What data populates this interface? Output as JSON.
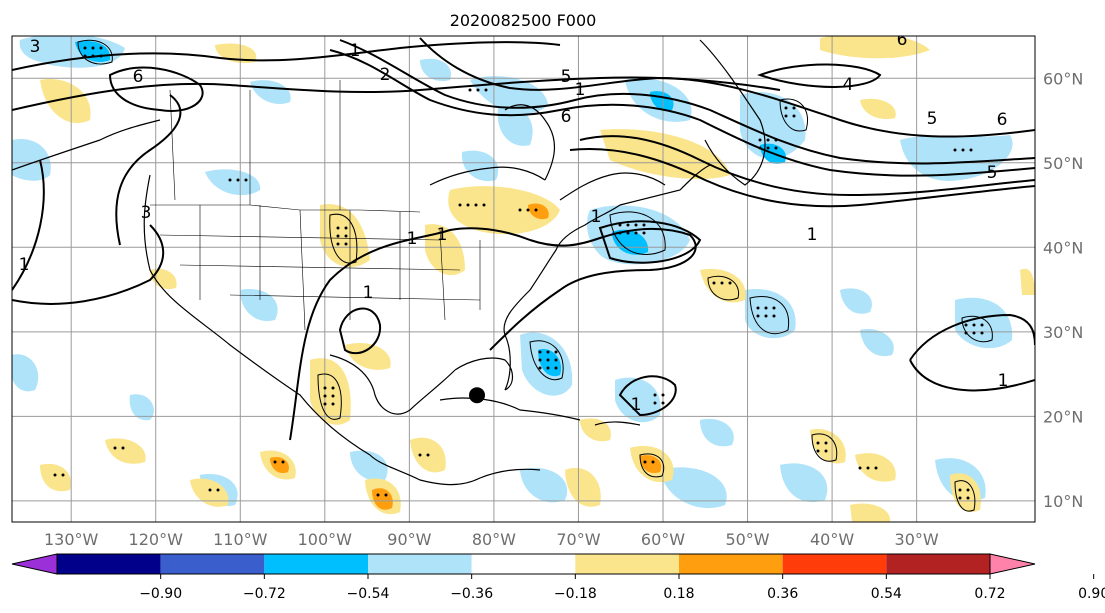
{
  "title": "2020082500 F000",
  "map": {
    "lon_labels": [
      "130°W",
      "120°W",
      "110°W",
      "100°W",
      "90°W",
      "80°W",
      "70°W",
      "60°W",
      "50°W",
      "40°W",
      "30°W"
    ],
    "lat_labels": [
      "60°N",
      "50°N",
      "40°N",
      "30°N",
      "20°N",
      "10°N"
    ],
    "lon_range": [
      -137,
      -16
    ],
    "lat_range": [
      7.5,
      65.0
    ],
    "grid": true,
    "storm_marker": {
      "lon": -82,
      "lat": 22.5
    },
    "contour_labels": [
      "3",
      "1",
      "2",
      "6",
      "5",
      "1",
      "6",
      "4",
      "5",
      "6",
      "6",
      "5",
      "3",
      "1",
      "1",
      "1",
      "1",
      "1",
      "1",
      "1",
      "1"
    ]
  },
  "colorbar": {
    "ticks": [
      "−0.90",
      "−0.72",
      "−0.54",
      "−0.36",
      "−0.18",
      "0.18",
      "0.36",
      "0.54",
      "0.72",
      "0.90"
    ],
    "colors": [
      "#9b30d9",
      "#00008b",
      "#3a5fcd",
      "#00bfff",
      "#aee3fa",
      "#ffffff",
      "#fbe58c",
      "#ff9f0f",
      "#ff3c0a",
      "#b22222",
      "#ff82ab"
    ]
  }
}
